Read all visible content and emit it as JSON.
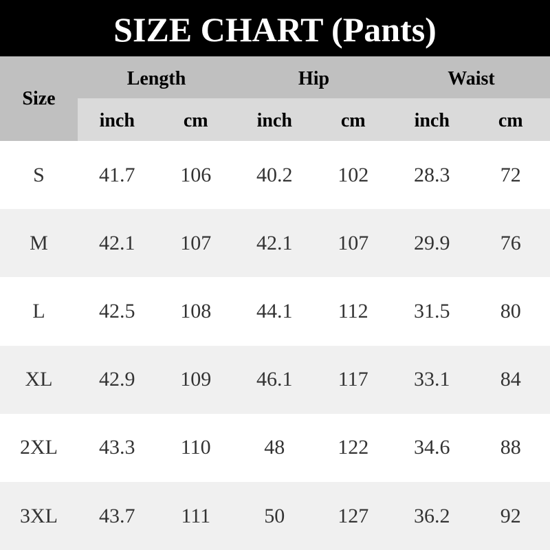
{
  "title": "SIZE CHART (Pants)",
  "header": {
    "size": "Size",
    "groups": [
      "Length",
      "Hip",
      "Waist"
    ],
    "units": [
      "inch",
      "cm",
      "inch",
      "cm",
      "inch",
      "cm"
    ]
  },
  "rows": [
    [
      "S",
      "41.7",
      "106",
      "40.2",
      "102",
      "28.3",
      "72"
    ],
    [
      "M",
      "42.1",
      "107",
      "42.1",
      "107",
      "29.9",
      "76"
    ],
    [
      "L",
      "42.5",
      "108",
      "44.1",
      "112",
      "31.5",
      "80"
    ],
    [
      "XL",
      "42.9",
      "109",
      "46.1",
      "117",
      "33.1",
      "84"
    ],
    [
      "2XL",
      "43.3",
      "110",
      "48",
      "122",
      "34.6",
      "88"
    ],
    [
      "3XL",
      "43.7",
      "111",
      "50",
      "127",
      "36.2",
      "92"
    ]
  ],
  "colors": {
    "title_bg": "#000000",
    "header_bg": "#c0c0c0",
    "unit_bg": "#dadada",
    "alt_row": "#f0f0f0"
  }
}
